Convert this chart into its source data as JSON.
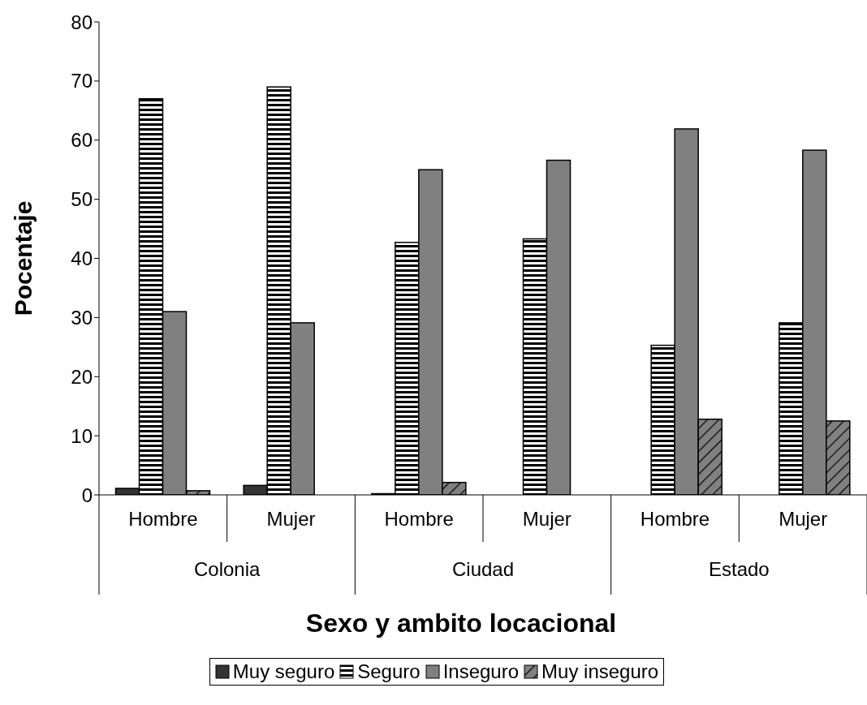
{
  "chart_data": {
    "type": "bar",
    "xlabel": "Sexo y ambito locacional",
    "ylabel": "Pocentaje",
    "categories": [
      "Hombre",
      "Mujer",
      "Hombre",
      "Mujer",
      "Hombre",
      "Mujer"
    ],
    "annotations": [
      "Colonia",
      "Ciudad",
      "Estado"
    ],
    "series": [
      {
        "name": "Muy seguro",
        "color": "#333333",
        "values": [
          1.1,
          1.6,
          0.2,
          null,
          null,
          null
        ]
      },
      {
        "name": "Seguro",
        "color": "#000000",
        "values": [
          67,
          69,
          42.7,
          43.3,
          25.3,
          29.1
        ]
      },
      {
        "name": "Inseguro",
        "color": "#808080",
        "values": [
          31,
          29.1,
          55,
          56.6,
          61.9,
          58.3
        ]
      },
      {
        "name": "Muy inseguro",
        "color": "#808080",
        "values": [
          0.7,
          null,
          2.1,
          null,
          12.8,
          12.5
        ]
      }
    ],
    "ylim": [
      0,
      80
    ],
    "yticks": [
      0,
      10,
      20,
      30,
      40,
      50,
      60,
      70,
      80
    ],
    "grid": false,
    "legend": "bottom"
  }
}
